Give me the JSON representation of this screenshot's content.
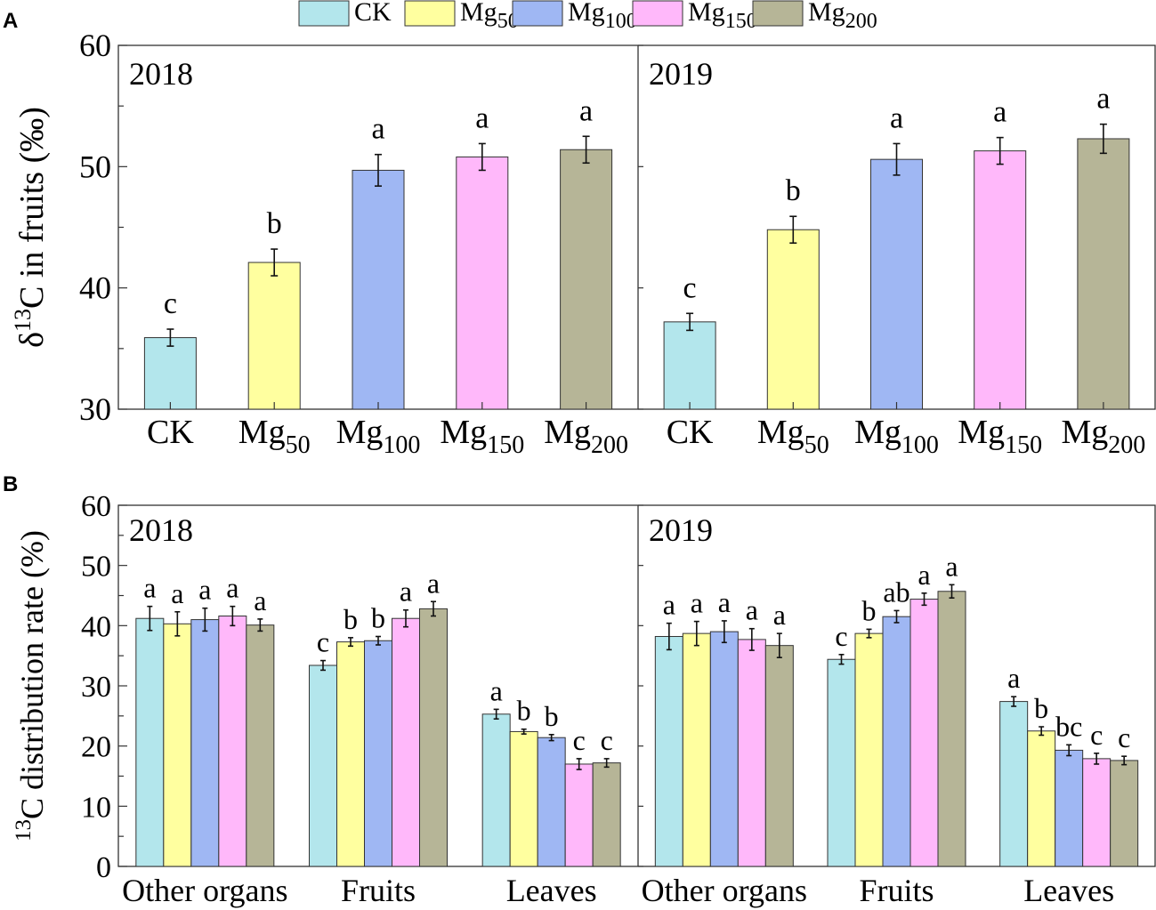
{
  "figure": {
    "panel_labels": [
      "A",
      "B"
    ]
  },
  "legend": {
    "entries": [
      {
        "base": "CK",
        "sub": "",
        "color": "#b3e6ec"
      },
      {
        "base": "Mg",
        "sub": "50",
        "color": "#ffff9f"
      },
      {
        "base": "Mg",
        "sub": "100",
        "color": "#9fb7f3"
      },
      {
        "base": "Mg",
        "sub": "150",
        "color": "#ffb8fa"
      },
      {
        "base": "Mg",
        "sub": "200",
        "color": "#b6b597"
      }
    ]
  },
  "chart_data": [
    {
      "type": "bar",
      "panel": "A",
      "ylabel": "δ13C in fruits (‰)",
      "ylabel_parts": {
        "pre": "δ",
        "sup": "13",
        "post": "C in fruits (‰)"
      },
      "ylim": [
        30,
        60
      ],
      "yticks": [
        30,
        40,
        50,
        60
      ],
      "categories": [
        {
          "base": "CK",
          "sub": ""
        },
        {
          "base": "Mg",
          "sub": "50"
        },
        {
          "base": "Mg",
          "sub": "100"
        },
        {
          "base": "Mg",
          "sub": "150"
        },
        {
          "base": "Mg",
          "sub": "200"
        }
      ],
      "facets": [
        {
          "title": "2018",
          "values": [
            35.9,
            42.1,
            49.7,
            50.8,
            51.4
          ],
          "errors": [
            0.7,
            1.1,
            1.3,
            1.1,
            1.1
          ],
          "letters": [
            "c",
            "b",
            "a",
            "a",
            "a"
          ]
        },
        {
          "title": "2019",
          "values": [
            37.2,
            44.8,
            50.6,
            51.3,
            52.3
          ],
          "errors": [
            0.7,
            1.1,
            1.3,
            1.1,
            1.2
          ],
          "letters": [
            "c",
            "b",
            "a",
            "a",
            "a"
          ]
        }
      ]
    },
    {
      "type": "bar",
      "panel": "B",
      "ylabel": "13C distribution rate (%)",
      "ylabel_parts": {
        "pre": "",
        "sup": "13",
        "post": "C distribution rate (%)"
      },
      "ylim": [
        0,
        60
      ],
      "yticks": [
        0,
        10,
        20,
        30,
        40,
        50,
        60
      ],
      "groups": [
        "Other organs",
        "Fruits",
        "Leaves"
      ],
      "series_names": [
        "CK",
        "Mg50",
        "Mg100",
        "Mg150",
        "Mg200"
      ],
      "facets": [
        {
          "title": "2018",
          "values": [
            [
              41.2,
              40.3,
              41.0,
              41.6,
              40.1
            ],
            [
              33.4,
              37.3,
              37.5,
              41.2,
              42.8
            ],
            [
              25.3,
              22.4,
              21.4,
              17.0,
              17.2
            ]
          ],
          "errors": [
            [
              2.0,
              2.0,
              1.9,
              1.6,
              1.0
            ],
            [
              0.8,
              0.7,
              0.7,
              1.4,
              1.2
            ],
            [
              0.8,
              0.4,
              0.5,
              0.9,
              0.7
            ]
          ],
          "letters": [
            [
              "a",
              "a",
              "a",
              "a",
              "a"
            ],
            [
              "c",
              "b",
              "b",
              "a",
              "a"
            ],
            [
              "a",
              "b",
              "b",
              "c",
              "c"
            ]
          ]
        },
        {
          "title": "2019",
          "values": [
            [
              38.2,
              38.7,
              39.0,
              37.7,
              36.7
            ],
            [
              34.4,
              38.7,
              41.5,
              44.4,
              45.7
            ],
            [
              27.4,
              22.5,
              19.3,
              17.9,
              17.6
            ]
          ],
          "errors": [
            [
              2.2,
              2.0,
              1.8,
              1.8,
              2.0
            ],
            [
              0.8,
              0.7,
              1.0,
              1.0,
              1.1
            ],
            [
              0.8,
              0.7,
              0.9,
              0.9,
              0.7
            ]
          ],
          "letters": [
            [
              "a",
              "a",
              "a",
              "a",
              "a"
            ],
            [
              "c",
              "b",
              "ab",
              "a",
              "a"
            ],
            [
              "a",
              "b",
              "bc",
              "c",
              "c"
            ]
          ]
        }
      ]
    }
  ]
}
